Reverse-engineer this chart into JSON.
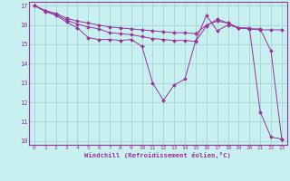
{
  "xlabel": "Windchill (Refroidissement éolien,°C)",
  "bg_color": "#c8f0f0",
  "grid_color": "#a8d8d8",
  "line_color": "#993399",
  "spine_color": "#993399",
  "xlim": [
    -0.5,
    23.5
  ],
  "ylim": [
    9.8,
    17.2
  ],
  "yticks": [
    10,
    11,
    12,
    13,
    14,
    15,
    16,
    17
  ],
  "xticks": [
    0,
    1,
    2,
    3,
    4,
    5,
    6,
    7,
    8,
    9,
    10,
    11,
    12,
    13,
    14,
    15,
    16,
    17,
    18,
    19,
    20,
    21,
    22,
    23
  ],
  "series1_x": [
    0,
    1,
    2,
    3,
    4,
    5,
    6,
    7,
    8,
    9,
    10,
    11,
    12,
    13,
    14,
    15,
    16,
    17,
    18,
    19,
    20,
    21,
    22,
    23
  ],
  "series1_y": [
    17.0,
    16.75,
    16.6,
    16.35,
    16.2,
    16.1,
    16.0,
    15.9,
    15.85,
    15.8,
    15.75,
    15.7,
    15.65,
    15.6,
    15.6,
    15.55,
    16.0,
    16.2,
    16.1,
    15.85,
    15.8,
    15.75,
    15.75,
    15.75
  ],
  "series2_x": [
    0,
    1,
    2,
    3,
    4,
    5,
    6,
    7,
    8,
    9,
    10,
    11,
    12,
    13,
    14,
    15,
    16,
    17,
    18,
    19,
    20,
    21,
    22,
    23
  ],
  "series2_y": [
    17.0,
    16.7,
    16.5,
    16.15,
    15.85,
    15.35,
    15.25,
    15.25,
    15.2,
    15.25,
    14.9,
    13.0,
    12.1,
    12.9,
    13.2,
    15.2,
    16.5,
    15.7,
    16.0,
    15.85,
    15.85,
    11.5,
    10.2,
    10.1
  ],
  "series3_x": [
    0,
    1,
    2,
    3,
    4,
    5,
    6,
    7,
    8,
    9,
    10,
    11,
    12,
    13,
    14,
    15,
    16,
    17,
    18,
    19,
    20,
    21,
    22,
    23
  ],
  "series3_y": [
    17.0,
    16.75,
    16.55,
    16.25,
    16.05,
    15.9,
    15.8,
    15.6,
    15.55,
    15.5,
    15.4,
    15.3,
    15.25,
    15.2,
    15.2,
    15.15,
    15.95,
    16.3,
    16.1,
    15.85,
    15.8,
    15.8,
    14.65,
    10.1
  ]
}
